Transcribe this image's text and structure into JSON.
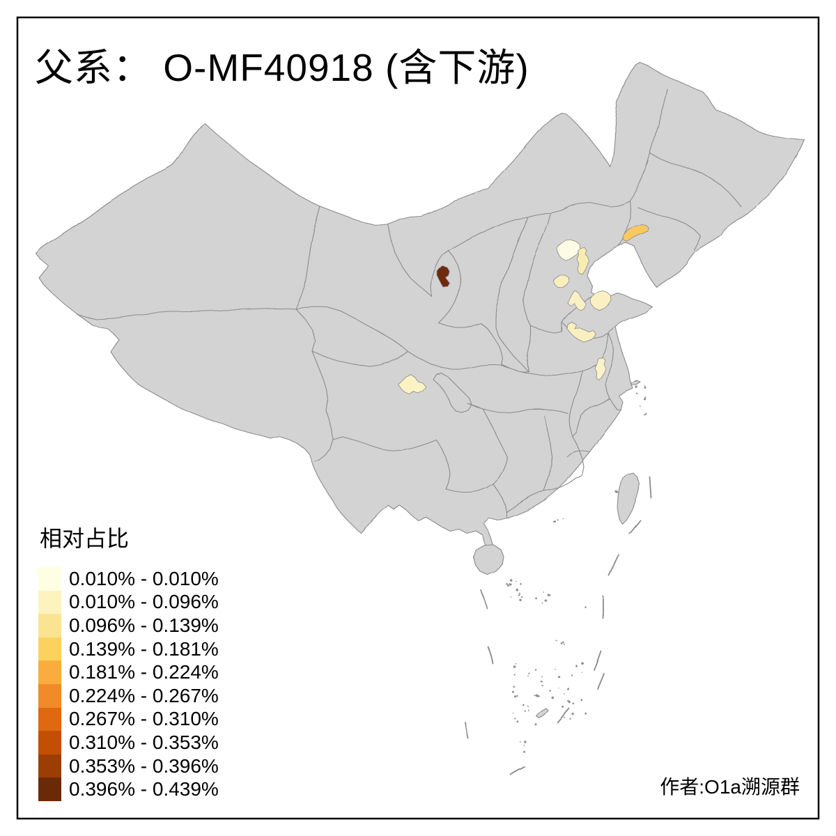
{
  "title": "父系： O-MF40918 (含下游)",
  "attribution": "作者:O1a溯源群",
  "legend": {
    "title": "相对占比",
    "items": [
      {
        "label": "0.010% - 0.010%",
        "color": "#FFFFE3"
      },
      {
        "label": "0.010% - 0.096%",
        "color": "#FDF3BF"
      },
      {
        "label": "0.096% - 0.139%",
        "color": "#FBE491"
      },
      {
        "label": "0.139% - 0.181%",
        "color": "#FCD25F"
      },
      {
        "label": "0.181% - 0.224%",
        "color": "#FBAC3E"
      },
      {
        "label": "0.224% - 0.267%",
        "color": "#F18A29"
      },
      {
        "label": "0.267% - 0.310%",
        "color": "#E06810"
      },
      {
        "label": "0.310% - 0.353%",
        "color": "#C24F03"
      },
      {
        "label": "0.353% - 0.396%",
        "color": "#9C3D03"
      },
      {
        "label": "0.396% - 0.439%",
        "color": "#6B2A07"
      }
    ]
  },
  "map": {
    "land_color": "#D3D3D3",
    "boundary_color": "#8A8A8A",
    "regions": [
      {
        "name": "ningxia-north",
        "color": "#6E2B07",
        "value_range": "0.396% - 0.439%"
      },
      {
        "name": "liaoning-coastal",
        "color": "#FBC761",
        "value_range": "0.139% - 0.181%"
      },
      {
        "name": "beijing",
        "color": "#FDFBE3",
        "value_range": "0.010% - 0.010%"
      },
      {
        "name": "tianjin",
        "color": "#F8ECB2",
        "value_range": "0.096% - 0.139%"
      },
      {
        "name": "hebei-shijiazhuang",
        "color": "#F9EEBE",
        "value_range": "0.010% - 0.096%"
      },
      {
        "name": "shandong-west",
        "color": "#FAF0C4",
        "value_range": "0.010% - 0.096%"
      },
      {
        "name": "shandong-jinan",
        "color": "#FAF0C4",
        "value_range": "0.010% - 0.096%"
      },
      {
        "name": "henan-north",
        "color": "#F9EFC0",
        "value_range": "0.010% - 0.096%"
      },
      {
        "name": "jiangsu-north",
        "color": "#FAF2C8",
        "value_range": "0.010% - 0.096%"
      },
      {
        "name": "sichuan-chengdu",
        "color": "#FBF3C4",
        "value_range": "0.010% - 0.096%"
      }
    ]
  }
}
